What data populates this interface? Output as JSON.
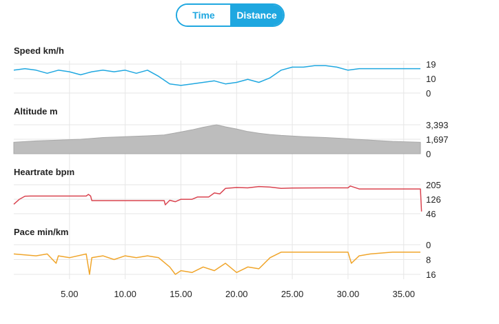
{
  "toggle": {
    "time_label": "Time",
    "distance_label": "Distance",
    "selected": "Distance"
  },
  "colors": {
    "accent": "#1ea7e0",
    "speed": "#1ea7e0",
    "altitude": "#bdbdbd",
    "heartrate": "#d9434f",
    "pace": "#f0a52a",
    "grid": "#e6e6e6"
  },
  "chart_data": [
    {
      "type": "line",
      "title": "Speed km/h",
      "ylim": [
        0,
        19
      ],
      "yticks": [
        "19",
        "10",
        "0"
      ],
      "x": [
        0,
        1,
        2,
        3,
        4,
        5,
        6,
        7,
        8,
        9,
        10,
        11,
        12,
        13,
        14,
        15,
        16,
        17,
        18,
        19,
        20,
        21,
        22,
        23,
        24,
        25,
        26,
        27,
        28,
        29,
        30,
        31,
        32,
        33,
        34,
        35,
        36.5
      ],
      "series": [
        {
          "values": [
            15,
            16,
            15,
            13,
            15,
            14,
            12,
            14,
            15,
            14,
            15,
            13,
            15,
            11,
            6,
            5,
            6,
            7,
            8,
            6,
            7,
            9,
            7,
            10,
            15,
            17,
            17,
            18,
            18,
            17,
            15,
            16,
            16,
            16,
            16,
            16,
            16
          ]
        }
      ]
    },
    {
      "type": "area",
      "title": "Altitude m",
      "ylim": [
        0,
        3393
      ],
      "yticks": [
        "3,393",
        "1,697",
        "0"
      ],
      "x": [
        0,
        2,
        4,
        6,
        8,
        10,
        12,
        13.5,
        15,
        16,
        17,
        18.2,
        19,
        20,
        21,
        22,
        23,
        24,
        26,
        28,
        30,
        32,
        34,
        36.5
      ],
      "series": [
        {
          "values": [
            1350,
            1500,
            1600,
            1700,
            1900,
            2000,
            2100,
            2200,
            2550,
            2800,
            3100,
            3393,
            3150,
            2900,
            2600,
            2400,
            2250,
            2150,
            2000,
            1900,
            1750,
            1600,
            1450,
            1350
          ]
        }
      ]
    },
    {
      "type": "line",
      "title": "Heartrate bpm",
      "ylim": [
        46,
        205
      ],
      "yticks": [
        "205",
        "126",
        "46"
      ],
      "x": [
        0,
        0.5,
        1,
        1.5,
        3,
        6.5,
        6.7,
        6.9,
        7,
        12,
        13.5,
        13.6,
        14,
        14.5,
        15,
        16,
        16.5,
        17.5,
        18,
        18.5,
        19,
        20,
        21,
        22,
        23,
        24,
        25,
        28,
        30,
        30.2,
        31,
        35,
        36.5,
        36.6
      ],
      "series": [
        {
          "values": [
            98,
            125,
            142,
            143,
            143,
            143,
            152,
            143,
            118,
            118,
            118,
            95,
            120,
            112,
            125,
            125,
            138,
            138,
            160,
            155,
            185,
            190,
            188,
            195,
            192,
            185,
            187,
            188,
            188,
            198,
            182,
            182,
            182,
            58
          ]
        }
      ]
    },
    {
      "type": "line",
      "title": "Pace min/km",
      "ylim": [
        0,
        16
      ],
      "yticks": [
        "0",
        "8",
        "16"
      ],
      "x": [
        0,
        2,
        3,
        3.8,
        4,
        5,
        6.5,
        6.8,
        7,
        8,
        9,
        10,
        11,
        12,
        13,
        14,
        14.5,
        15,
        16,
        17,
        18,
        19,
        20,
        21,
        22,
        23,
        24,
        25,
        28,
        30,
        30.3,
        31,
        32,
        34,
        36.5
      ],
      "series": [
        {
          "values": [
            5,
            6,
            5,
            10,
            6,
            7,
            5,
            16,
            7,
            6,
            8,
            6,
            7,
            6,
            7,
            12,
            16,
            14,
            15,
            12,
            14,
            10,
            15,
            12,
            13,
            7,
            4,
            4,
            4,
            4,
            10,
            6,
            5,
            4,
            4
          ]
        }
      ]
    }
  ],
  "xaxis": {
    "min": 0,
    "max": 36.5,
    "ticks": [
      "5.00",
      "10.00",
      "15.00",
      "20.00",
      "25.00",
      "30.00",
      "35.00"
    ],
    "tick_values": [
      5,
      10,
      15,
      20,
      25,
      30,
      35
    ]
  }
}
